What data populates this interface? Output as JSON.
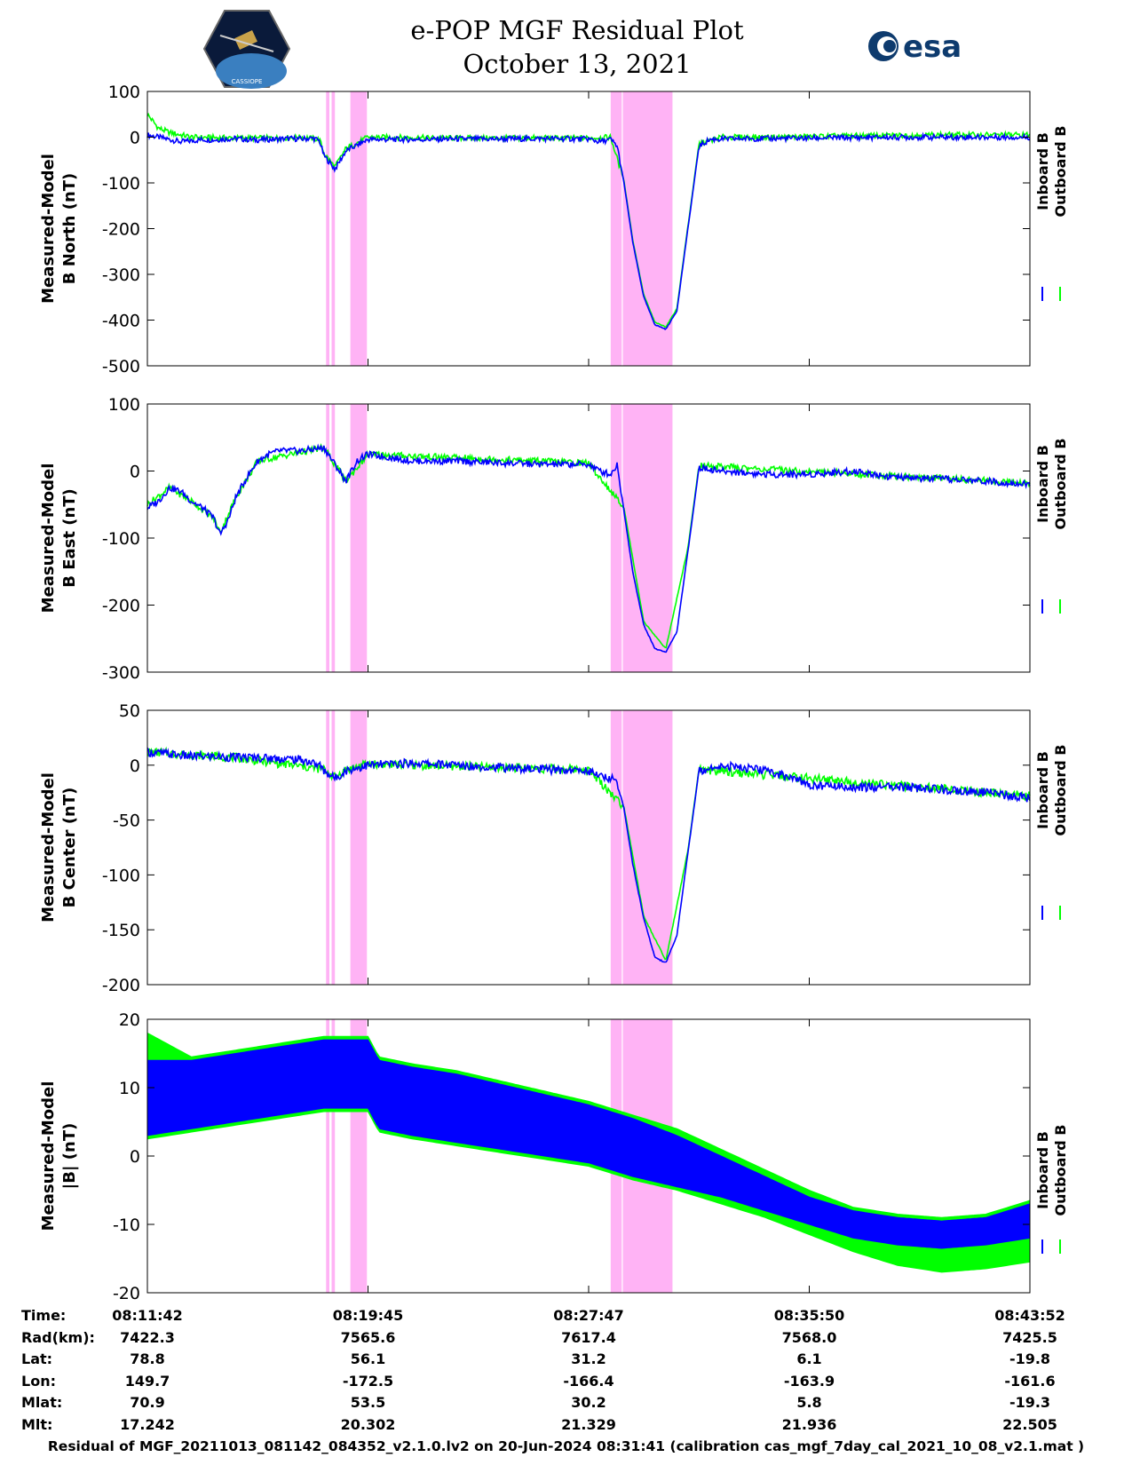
{
  "header": {
    "title_line1": "e-POP MGF Residual Plot",
    "title_line2": "October 13, 2021",
    "left_logo_text": "CASSIOPE",
    "right_logo_text": "esa"
  },
  "colors": {
    "inboard": "#0000ff",
    "outboard": "#00ff00",
    "shade": "#ffb3f5"
  },
  "chart_data": [
    {
      "type": "line",
      "ylabel_line1": "Measured-Model",
      "ylabel_line2": "B North (nT)",
      "ylim": [
        -500,
        100
      ],
      "yticks": [
        100,
        0,
        -100,
        -200,
        -300,
        -400,
        -500
      ],
      "legend": [
        "Inboard B",
        "Outboard B"
      ],
      "legend_position": "right",
      "series": [
        {
          "name": "Inboard B",
          "x": [
            0,
            0.5,
            1,
            1.5,
            2,
            2.5,
            3,
            3.5,
            4,
            4.5,
            5,
            5.5,
            6,
            6.5,
            7,
            7.5,
            7.8,
            8,
            8.5,
            9,
            10,
            12,
            14,
            16,
            18,
            20,
            20.5,
            21,
            21.3,
            21.6,
            22,
            22.5,
            23,
            23.5,
            24,
            24.5,
            25,
            25.5,
            26,
            26.5,
            27,
            27.5,
            28,
            30,
            32,
            34,
            36,
            38,
            40
          ],
          "y": [
            5,
            0,
            -5,
            -10,
            -8,
            -5,
            -6,
            -4,
            -3,
            -5,
            -6,
            -5,
            -4,
            -3,
            -4,
            -2,
            -8,
            -40,
            -70,
            -30,
            -5,
            -5,
            -4,
            -4,
            -3,
            -4,
            -10,
            -5,
            -20,
            -100,
            -230,
            -350,
            -410,
            -420,
            -380,
            -200,
            -20,
            -5,
            -4,
            -4,
            -3,
            -3,
            -3,
            -2,
            -1,
            0,
            0,
            0,
            0
          ]
        },
        {
          "name": "Outboard B",
          "x": [
            0,
            0.5,
            1,
            2,
            4,
            6,
            7,
            7.8,
            8,
            8.5,
            9,
            10,
            14,
            20,
            21,
            21.6,
            22,
            22.5,
            23,
            23.5,
            24,
            24.5,
            25,
            26,
            28,
            32,
            36,
            40
          ],
          "y": [
            50,
            20,
            10,
            0,
            -2,
            -2,
            0,
            -5,
            -35,
            -65,
            -25,
            0,
            -2,
            -2,
            0,
            -95,
            -225,
            -345,
            -405,
            -415,
            -375,
            -195,
            -15,
            0,
            0,
            3,
            5,
            5
          ]
        }
      ]
    },
    {
      "type": "line",
      "ylabel_line1": "Measured-Model",
      "ylabel_line2": "B East (nT)",
      "ylim": [
        -300,
        100
      ],
      "yticks": [
        100,
        0,
        -100,
        -200,
        -300
      ],
      "legend": [
        "Inboard B",
        "Outboard B"
      ],
      "legend_position": "right",
      "series": [
        {
          "name": "Inboard B",
          "x": [
            0,
            0.5,
            1,
            1.5,
            2,
            2.5,
            3,
            3.3,
            3.7,
            4,
            4.5,
            5,
            5.5,
            6,
            7,
            8,
            8.5,
            9,
            9.5,
            10,
            12,
            14,
            16,
            18,
            20,
            20.5,
            21,
            21.3,
            21.6,
            22,
            22.5,
            23,
            23.5,
            24,
            24.5,
            25,
            26,
            28,
            30,
            32,
            34,
            36,
            38,
            40
          ],
          "y": [
            -55,
            -45,
            -25,
            -30,
            -45,
            -55,
            -70,
            -95,
            -70,
            -40,
            -10,
            15,
            25,
            30,
            30,
            35,
            10,
            -15,
            15,
            25,
            15,
            15,
            12,
            10,
            10,
            0,
            -5,
            10,
            -60,
            -150,
            -230,
            -265,
            -270,
            -240,
            -120,
            5,
            0,
            -5,
            -5,
            0,
            -10,
            -12,
            -15,
            -20
          ]
        },
        {
          "name": "Outboard B",
          "x": [
            0,
            1,
            2,
            3,
            3.3,
            4,
            5,
            8,
            8.5,
            9,
            10,
            20,
            21.6,
            22.5,
            23.5,
            24.5,
            25,
            40
          ],
          "y": [
            -50,
            -25,
            -45,
            -70,
            -92,
            -40,
            15,
            35,
            10,
            -15,
            25,
            12,
            -55,
            -225,
            -265,
            -115,
            8,
            -18
          ]
        }
      ]
    },
    {
      "type": "line",
      "ylabel_line1": "Measured-Model",
      "ylabel_line2": "B Center (nT)",
      "ylim": [
        -200,
        50
      ],
      "yticks": [
        50,
        0,
        -50,
        -100,
        -150,
        -200
      ],
      "legend": [
        "Inboard B",
        "Outboard B"
      ],
      "legend_position": "right",
      "series": [
        {
          "name": "Inboard B",
          "x": [
            0,
            1,
            2,
            3,
            4,
            5,
            6,
            7,
            7.8,
            8,
            8.5,
            9,
            10,
            12,
            14,
            16,
            18,
            20,
            20.5,
            21,
            21.3,
            21.6,
            22,
            22.5,
            23,
            23.5,
            24,
            24.5,
            25,
            26,
            28,
            29,
            30,
            32,
            34,
            36,
            38,
            40
          ],
          "y": [
            12,
            10,
            8,
            8,
            7,
            7,
            6,
            5,
            0,
            -5,
            -12,
            -5,
            0,
            2,
            0,
            -2,
            -4,
            -5,
            -10,
            -12,
            -15,
            -40,
            -90,
            -140,
            -175,
            -180,
            -155,
            -80,
            -5,
            0,
            -5,
            -10,
            -18,
            -20,
            -20,
            -22,
            -25,
            -30
          ]
        },
        {
          "name": "Outboard B",
          "x": [
            0,
            4,
            8,
            8.5,
            9,
            10,
            20,
            21.6,
            22.5,
            23.5,
            24.5,
            25,
            40
          ],
          "y": [
            12,
            7,
            -4,
            -11,
            -4,
            1,
            -4,
            -38,
            -138,
            -178,
            -78,
            -4,
            -28
          ]
        }
      ]
    },
    {
      "type": "area",
      "ylabel_line1": "Measured-Model",
      "ylabel_line2": "|B| (nT)",
      "ylim": [
        -20,
        20
      ],
      "yticks": [
        20,
        10,
        0,
        -10,
        -20
      ],
      "legend": [
        "Inboard B",
        "Outboard B"
      ],
      "legend_position": "right",
      "series": [
        {
          "name": "Inboard B",
          "x": [
            0,
            2,
            4,
            6,
            8,
            9,
            10,
            10.5,
            12,
            14,
            16,
            18,
            20,
            22,
            24,
            26,
            28,
            30,
            32,
            34,
            36,
            38,
            40
          ],
          "y_upper": [
            14,
            14,
            15,
            16,
            17,
            17,
            17,
            14,
            13,
            12,
            10.5,
            9,
            7.5,
            5.5,
            3,
            0,
            -3,
            -6,
            -8,
            -9,
            -9.5,
            -9,
            -7
          ],
          "y_lower": [
            3,
            4,
            5,
            6,
            7,
            7,
            7,
            4,
            3,
            2,
            1,
            0,
            -1,
            -3,
            -4.5,
            -6,
            -8,
            -10,
            -12,
            -13,
            -13.5,
            -13,
            -12
          ]
        },
        {
          "name": "Outboard B",
          "x": [
            0,
            2,
            4,
            6,
            8,
            10,
            10.5,
            12,
            14,
            16,
            18,
            20,
            22,
            24,
            26,
            28,
            30,
            32,
            34,
            36,
            38,
            40
          ],
          "y_upper": [
            18,
            14.5,
            15.5,
            16.5,
            17.5,
            17.5,
            14.5,
            13.5,
            12.5,
            11,
            9.5,
            8,
            6,
            4,
            1,
            -2,
            -5,
            -7.5,
            -8.5,
            -9,
            -8.5,
            -6.5
          ],
          "y_lower": [
            2.5,
            3.5,
            4.5,
            5.5,
            6.5,
            6.5,
            3.5,
            2.5,
            1.5,
            0.5,
            -0.5,
            -1.5,
            -3.5,
            -5,
            -7,
            -9,
            -11.5,
            -14,
            -16,
            -17,
            -16.5,
            -15.5
          ]
        }
      ]
    }
  ],
  "shaded_intervals_min": [
    [
      8.1,
      8.25
    ],
    [
      8.35,
      8.5
    ],
    [
      9.2,
      9.95
    ],
    [
      21.0,
      21.5
    ],
    [
      21.55,
      23.8
    ]
  ],
  "x_axis": {
    "range_min": [
      0,
      40
    ],
    "tick_positions_min": [
      0,
      10,
      20,
      30,
      40
    ],
    "tick_labels": [
      "08:11:42",
      "08:19:45",
      "08:27:47",
      "08:35:50",
      "08:43:52"
    ]
  },
  "ephemeris": [
    {
      "label": "Time:",
      "values": [
        "08:11:42",
        "08:19:45",
        "08:27:47",
        "08:35:50",
        "08:43:52"
      ]
    },
    {
      "label": "Rad(km):",
      "values": [
        "7422.3",
        "7565.6",
        "7617.4",
        "7568.0",
        "7425.5"
      ]
    },
    {
      "label": "Lat:",
      "values": [
        "78.8",
        "56.1",
        "31.2",
        "6.1",
        "-19.8"
      ]
    },
    {
      "label": "Lon:",
      "values": [
        "149.7",
        "-172.5",
        "-166.4",
        "-163.9",
        "-161.6"
      ]
    },
    {
      "label": "Mlat:",
      "values": [
        "70.9",
        "53.5",
        "30.2",
        "5.8",
        "-19.3"
      ]
    },
    {
      "label": "Mlt:",
      "values": [
        "17.242",
        "20.302",
        "21.329",
        "21.936",
        "22.505"
      ]
    }
  ],
  "footer": "Residual of MGF_20211013_081142_084352_v2.1.0.lv2 on 20-Jun-2024 08:31:41 (calibration cas_mgf_7day_cal_2021_10_08_v2.1.mat )"
}
